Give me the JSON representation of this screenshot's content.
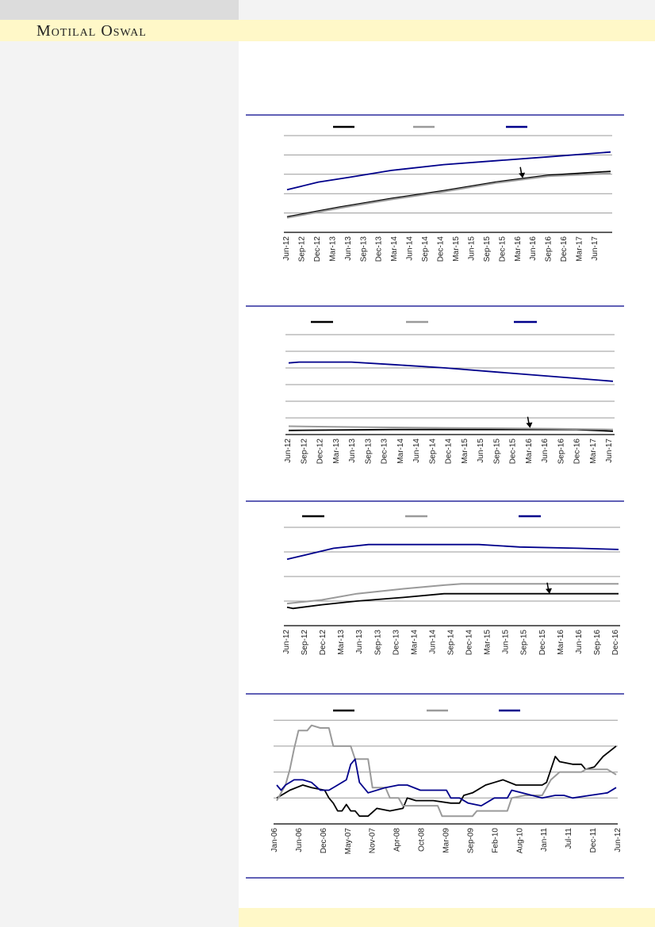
{
  "header": {
    "brand": "Motilal Oswal"
  },
  "colors": {
    "series1": "#000000",
    "series2": "#9a9a9a",
    "series3": "#00008b",
    "rule": "#00008b",
    "grid": "#9a9a9a"
  },
  "chart_data": [
    {
      "type": "line",
      "title": "",
      "xlabel": "",
      "ylabel": "",
      "ylim": [
        0,
        5
      ],
      "grid": true,
      "x_ticks": [
        "Jun-12",
        "Sep-12",
        "Dec-12",
        "Mar-13",
        "Jun-13",
        "Sep-13",
        "Dec-13",
        "Mar-14",
        "Jun-14",
        "Sep-14",
        "Dec-14",
        "Mar-15",
        "Jun-15",
        "Sep-15",
        "Dec-15",
        "Mar-16",
        "Jun-16",
        "Sep-16",
        "Dec-16",
        "Mar-17",
        "Jun-17"
      ],
      "x_range": [
        0,
        62
      ],
      "annotation": {
        "type": "arrow",
        "x_month": 45,
        "y": 2.8
      },
      "series": [
        {
          "name": "",
          "points": [
            [
              0,
              0.8
            ],
            [
              10,
              1.3
            ],
            [
              20,
              1.75
            ],
            [
              30,
              2.15
            ],
            [
              40,
              2.6
            ],
            [
              50,
              2.95
            ],
            [
              62,
              3.15
            ]
          ]
        },
        {
          "name": "",
          "points": [
            [
              0,
              0.75
            ],
            [
              10,
              1.25
            ],
            [
              20,
              1.7
            ],
            [
              30,
              2.1
            ],
            [
              40,
              2.55
            ],
            [
              50,
              2.9
            ],
            [
              62,
              3.05
            ]
          ]
        },
        {
          "name": "",
          "points": [
            [
              0,
              2.2
            ],
            [
              6,
              2.6
            ],
            [
              12,
              2.85
            ],
            [
              20,
              3.2
            ],
            [
              30,
              3.5
            ],
            [
              40,
              3.7
            ],
            [
              50,
              3.9
            ],
            [
              62,
              4.15
            ]
          ]
        }
      ]
    },
    {
      "type": "line",
      "title": "",
      "xlabel": "",
      "ylabel": "",
      "ylim": [
        0,
        6
      ],
      "grid": true,
      "x_ticks": [
        "Jun-12",
        "Sep-12",
        "Dec-12",
        "Mar-13",
        "Jun-13",
        "Sep-13",
        "Dec-13",
        "Mar-14",
        "Jun-14",
        "Sep-14",
        "Dec-14",
        "Mar-15",
        "Jun-15",
        "Sep-15",
        "Dec-15",
        "Mar-16",
        "Jun-16",
        "Sep-16",
        "Dec-16",
        "Mar-17",
        "Jun-17"
      ],
      "x_range": [
        0,
        62
      ],
      "annotation": {
        "type": "arrow",
        "x_month": 46,
        "y": 0.4
      },
      "series": [
        {
          "name": "",
          "points": [
            [
              0,
              0.25
            ],
            [
              20,
              0.3
            ],
            [
              40,
              0.3
            ],
            [
              55,
              0.3
            ],
            [
              62,
              0.2
            ]
          ]
        },
        {
          "name": "",
          "points": [
            [
              0,
              0.5
            ],
            [
              12,
              0.45
            ],
            [
              30,
              0.4
            ],
            [
              50,
              0.35
            ],
            [
              62,
              0.3
            ]
          ]
        },
        {
          "name": "",
          "points": [
            [
              0,
              4.3
            ],
            [
              2,
              4.35
            ],
            [
              12,
              4.35
            ],
            [
              20,
              4.2
            ],
            [
              30,
              4.0
            ],
            [
              40,
              3.75
            ],
            [
              50,
              3.5
            ],
            [
              62,
              3.2
            ]
          ]
        }
      ]
    },
    {
      "type": "line",
      "title": "",
      "xlabel": "",
      "ylabel": "",
      "ylim": [
        0,
        4
      ],
      "grid": true,
      "x_ticks": [
        "Jun-12",
        "Sep-12",
        "Dec-12",
        "Mar-13",
        "Jun-13",
        "Sep-13",
        "Dec-13",
        "Mar-14",
        "Jun-14",
        "Sep-14",
        "Dec-14",
        "Mar-15",
        "Jun-15",
        "Sep-15",
        "Dec-15",
        "Mar-16",
        "Jun-16",
        "Sep-16",
        "Dec-16"
      ],
      "x_range": [
        0,
        57
      ],
      "annotation": {
        "type": "arrow",
        "x_month": 45,
        "y": 1.3
      },
      "series": [
        {
          "name": "",
          "points": [
            [
              0,
              0.75
            ],
            [
              1,
              0.7
            ],
            [
              6,
              0.85
            ],
            [
              12,
              1.0
            ],
            [
              20,
              1.15
            ],
            [
              27,
              1.3
            ],
            [
              57,
              1.3
            ]
          ]
        },
        {
          "name": "",
          "points": [
            [
              0,
              0.9
            ],
            [
              6,
              1.05
            ],
            [
              12,
              1.3
            ],
            [
              20,
              1.5
            ],
            [
              27,
              1.65
            ],
            [
              30,
              1.7
            ],
            [
              57,
              1.7
            ]
          ]
        },
        {
          "name": "",
          "points": [
            [
              0,
              2.7
            ],
            [
              8,
              3.15
            ],
            [
              14,
              3.3
            ],
            [
              16,
              3.3
            ],
            [
              33,
              3.3
            ],
            [
              40,
              3.2
            ],
            [
              50,
              3.15
            ],
            [
              57,
              3.1
            ]
          ]
        }
      ]
    },
    {
      "type": "line",
      "title": "",
      "xlabel": "",
      "ylabel": "",
      "ylim": [
        0,
        4
      ],
      "grid": true,
      "x_ticks": [
        "Jan-06",
        "Jun-06",
        "Dec-06",
        "May-07",
        "Nov-07",
        "Apr-08",
        "Oct-08",
        "Mar-09",
        "Sep-09",
        "Feb-10",
        "Aug-10",
        "Jan-11",
        "Jul-11",
        "Dec-11",
        "Jun-12"
      ],
      "x_range": [
        0,
        78
      ],
      "series": [
        {
          "name": "",
          "points": [
            [
              0,
              1.0
            ],
            [
              3,
              1.3
            ],
            [
              6,
              1.5
            ],
            [
              8,
              1.4
            ],
            [
              11,
              1.3
            ],
            [
              12,
              1.0
            ],
            [
              13,
              0.8
            ],
            [
              14,
              0.5
            ],
            [
              15,
              0.5
            ],
            [
              16,
              0.75
            ],
            [
              17,
              0.5
            ],
            [
              18,
              0.5
            ],
            [
              19,
              0.3
            ],
            [
              21,
              0.3
            ],
            [
              23,
              0.6
            ],
            [
              26,
              0.5
            ],
            [
              29,
              0.6
            ],
            [
              30,
              1.0
            ],
            [
              32,
              0.9
            ],
            [
              36,
              0.9
            ],
            [
              40,
              0.8
            ],
            [
              42,
              0.8
            ],
            [
              43,
              1.1
            ],
            [
              45,
              1.2
            ],
            [
              48,
              1.5
            ],
            [
              50,
              1.6
            ],
            [
              52,
              1.7
            ],
            [
              55,
              1.5
            ],
            [
              58,
              1.5
            ],
            [
              61,
              1.5
            ],
            [
              62,
              1.6
            ],
            [
              64,
              2.6
            ],
            [
              65,
              2.4
            ],
            [
              68,
              2.3
            ],
            [
              70,
              2.3
            ],
            [
              71,
              2.1
            ],
            [
              73,
              2.2
            ],
            [
              75,
              2.6
            ],
            [
              78,
              3.0
            ]
          ]
        },
        {
          "name": "",
          "points": [
            [
              0,
              0.9
            ],
            [
              2,
              1.5
            ],
            [
              3,
              2.1
            ],
            [
              4,
              2.9
            ],
            [
              5,
              3.6
            ],
            [
              7,
              3.6
            ],
            [
              8,
              3.8
            ],
            [
              10,
              3.7
            ],
            [
              12,
              3.7
            ],
            [
              13,
              3.0
            ],
            [
              17,
              3.0
            ],
            [
              18,
              2.5
            ],
            [
              21,
              2.5
            ],
            [
              22,
              1.4
            ],
            [
              25,
              1.4
            ],
            [
              26,
              1.0
            ],
            [
              28,
              1.0
            ],
            [
              29,
              0.7
            ],
            [
              37,
              0.7
            ],
            [
              38,
              0.3
            ],
            [
              45,
              0.3
            ],
            [
              46,
              0.5
            ],
            [
              53,
              0.5
            ],
            [
              54,
              1.0
            ],
            [
              57,
              1.1
            ],
            [
              61,
              1.1
            ],
            [
              63,
              1.7
            ],
            [
              65,
              2.0
            ],
            [
              70,
              2.0
            ],
            [
              71,
              2.1
            ],
            [
              76,
              2.1
            ],
            [
              78,
              1.9
            ]
          ]
        },
        {
          "name": "",
          "points": [
            [
              0,
              1.5
            ],
            [
              1,
              1.3
            ],
            [
              2,
              1.5
            ],
            [
              4,
              1.7
            ],
            [
              6,
              1.7
            ],
            [
              8,
              1.6
            ],
            [
              10,
              1.3
            ],
            [
              12,
              1.3
            ],
            [
              14,
              1.5
            ],
            [
              16,
              1.7
            ],
            [
              17,
              2.3
            ],
            [
              18,
              2.5
            ],
            [
              19,
              1.6
            ],
            [
              21,
              1.2
            ],
            [
              25,
              1.4
            ],
            [
              28,
              1.5
            ],
            [
              30,
              1.5
            ],
            [
              33,
              1.3
            ],
            [
              39,
              1.3
            ],
            [
              40,
              1.0
            ],
            [
              42,
              1.0
            ],
            [
              44,
              0.8
            ],
            [
              47,
              0.7
            ],
            [
              50,
              1.0
            ],
            [
              53,
              1.0
            ],
            [
              54,
              1.3
            ],
            [
              61,
              1.0
            ],
            [
              64,
              1.1
            ],
            [
              66,
              1.1
            ],
            [
              68,
              1.0
            ],
            [
              72,
              1.1
            ],
            [
              76,
              1.2
            ],
            [
              78,
              1.4
            ]
          ]
        }
      ]
    }
  ]
}
